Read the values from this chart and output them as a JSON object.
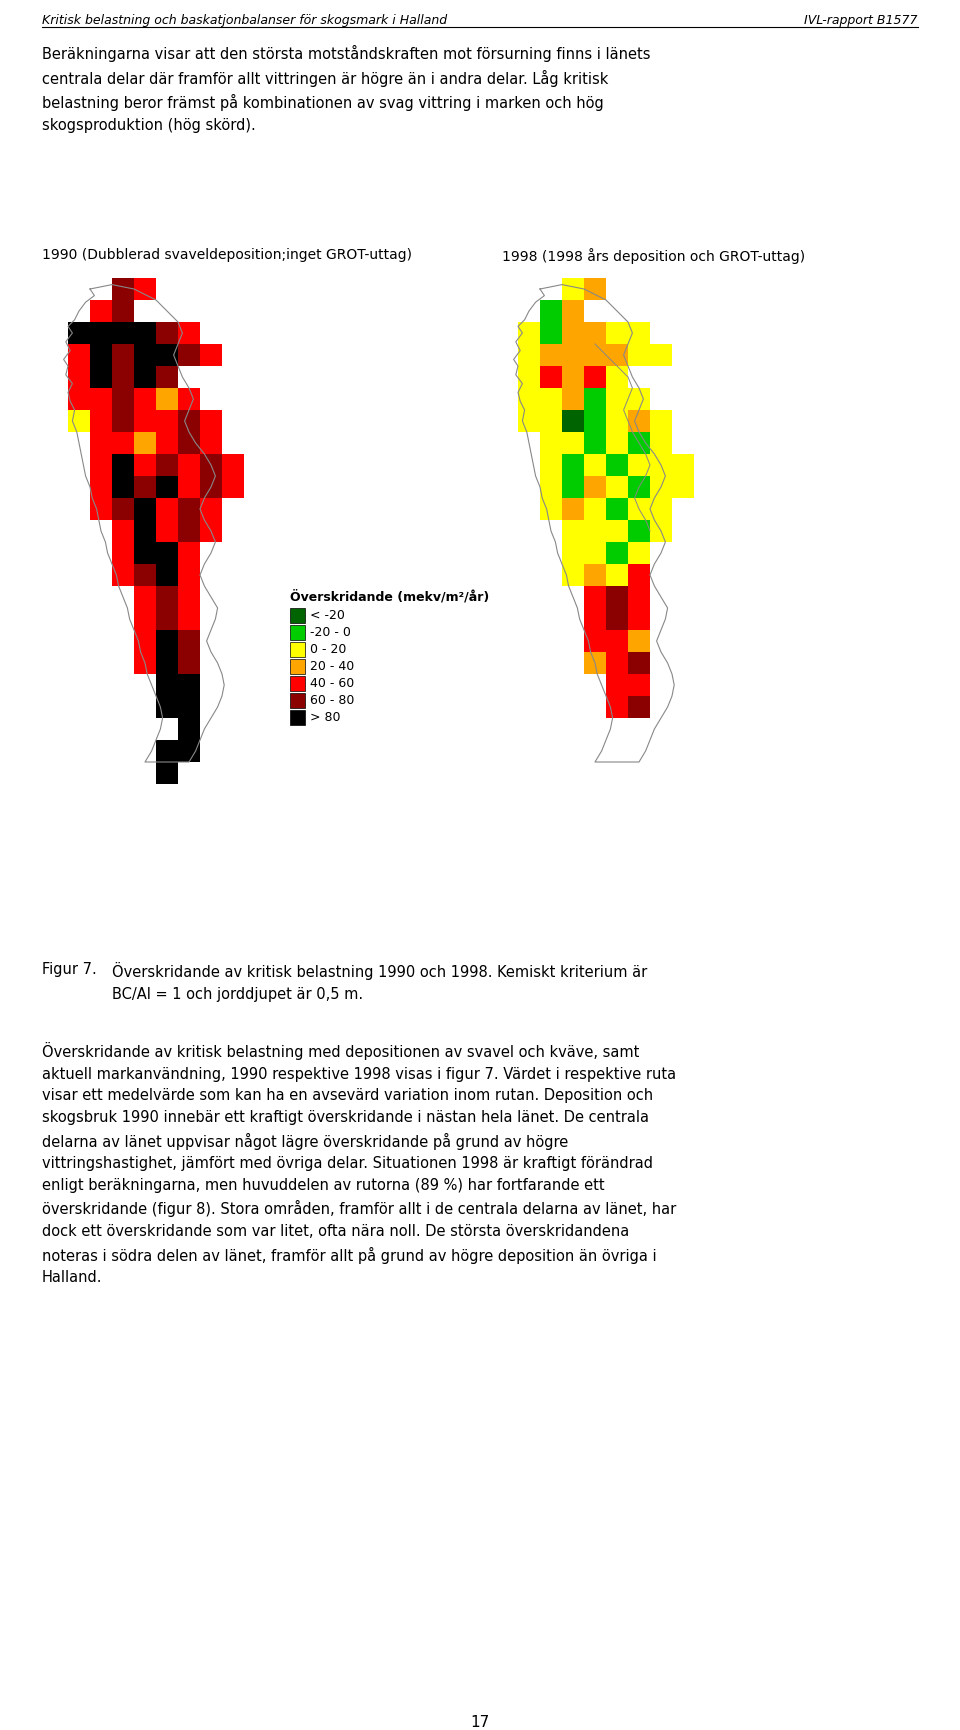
{
  "header_left": "Kritisk belastning och baskatjonbalanser för skogsmark i Halland",
  "header_right": "IVL-rapport B1577",
  "para1": "Beräkningarna visar att den största motståndskraften mot försurning finns i länets\ncentrala delar där framför allt vittringen är högre än i andra delar. Låg kritisk\nbelastning beror främst på kombinationen av svag vittring i marken och hög\nskogsproduktion (hög skörd).",
  "label_left": "1990 (Dubblerad svaveldeposition;inget GROT-uttag)",
  "label_right": "1998 (1998 års deposition och GROT-uttag)",
  "legend_title": "Överskridande (mekv/m²/år)",
  "legend_items": [
    {
      "label": "< -20",
      "color": "#006400"
    },
    {
      "label": "-20 - 0",
      "color": "#00CC00"
    },
    {
      "label": "0 - 20",
      "color": "#FFFF00"
    },
    {
      "label": "20 - 40",
      "color": "#FFA500"
    },
    {
      "label": "40 - 60",
      "color": "#FF0000"
    },
    {
      "label": "60 - 80",
      "color": "#8B0000"
    },
    {
      "label": "> 80",
      "color": "#000000"
    }
  ],
  "fig_caption_label": "Figur 7.",
  "fig_caption_text": "Överskridande av kritisk belastning 1990 och 1998. Kemiskt kriterium är\nBC/Al = 1 och jorddjupet är 0,5 m.",
  "body_text": "Överskridande av kritisk belastning med depositionen av svavel och kväve, samt\naktuell markanvändning, 1990 respektive 1998 visas i figur 7. Värdet i respektive ruta\nvisar ett medelvärde som kan ha en avsevärd variation inom rutan. Deposition och\nskogsbruk 1990 innebär ett kraftigt överskridande i nästan hela länet. De centrala\ndelarna av länet uppvisar något lägre överskridande på grund av högre\nvittringshastighet, jämfört med övriga delar. Situationen 1998 är kraftigt förändrad\nenligt beräkningarna, men huvuddelen av rutorna (89 %) har fortfarande ett\növerskridande (figur 8). Stora områden, framför allt i de centrala delarna av länet, har\ndock ett överskridande som var litet, ofta nära noll. De största överskridandena\nnoteras i södra delen av länet, framför allt på grund av högre deposition än övriga i\nHalland.",
  "page_number": "17",
  "bg_color": "#FFFFFF",
  "text_color": "#000000",
  "map1990_grid": [
    [
      null,
      null,
      "D",
      "R",
      null,
      null,
      null,
      null,
      null,
      null
    ],
    [
      null,
      "R",
      "D",
      null,
      null,
      null,
      null,
      null,
      null,
      null
    ],
    [
      "K",
      "K",
      "K",
      "K",
      "D",
      "R",
      null,
      null,
      null,
      null
    ],
    [
      "R",
      "K",
      "D",
      "K",
      "K",
      "D",
      "R",
      null,
      null,
      null
    ],
    [
      "R",
      "K",
      "D",
      "K",
      "D",
      null,
      null,
      null,
      null,
      null
    ],
    [
      "R",
      "R",
      "D",
      "R",
      "O",
      "R",
      null,
      null,
      null,
      null
    ],
    [
      "Y",
      "R",
      "D",
      "R",
      "R",
      "D",
      "R",
      null,
      null,
      null
    ],
    [
      null,
      "R",
      "R",
      "O",
      "R",
      "D",
      "R",
      null,
      null,
      null
    ],
    [
      null,
      "R",
      "K",
      "R",
      "D",
      "R",
      "D",
      "R",
      null,
      null
    ],
    [
      null,
      "R",
      "K",
      "D",
      "K",
      "R",
      "D",
      "R",
      null,
      null
    ],
    [
      null,
      "R",
      "D",
      "K",
      "R",
      "D",
      "R",
      null,
      null,
      null
    ],
    [
      null,
      null,
      "R",
      "K",
      "R",
      "D",
      "R",
      null,
      null,
      null
    ],
    [
      null,
      null,
      "R",
      "K",
      "K",
      "R",
      null,
      null,
      null,
      null
    ],
    [
      null,
      null,
      "R",
      "D",
      "K",
      "R",
      null,
      null,
      null,
      null
    ],
    [
      null,
      null,
      null,
      "R",
      "D",
      "R",
      null,
      null,
      null,
      null
    ],
    [
      null,
      null,
      null,
      "R",
      "D",
      "R",
      null,
      null,
      null,
      null
    ],
    [
      null,
      null,
      null,
      "R",
      "K",
      "D",
      null,
      null,
      null,
      null
    ],
    [
      null,
      null,
      null,
      "R",
      "K",
      "D",
      null,
      null,
      null,
      null
    ],
    [
      null,
      null,
      null,
      null,
      "K",
      "K",
      null,
      null,
      null,
      null
    ],
    [
      null,
      null,
      null,
      null,
      "K",
      "K",
      null,
      null,
      null,
      null
    ],
    [
      null,
      null,
      null,
      null,
      "W",
      "K",
      null,
      null,
      null,
      null
    ],
    [
      null,
      null,
      null,
      null,
      "K",
      "K",
      null,
      null,
      null,
      null
    ],
    [
      null,
      null,
      null,
      null,
      "K",
      null,
      null,
      null,
      null,
      null
    ]
  ],
  "map1998_grid": [
    [
      null,
      null,
      "Y",
      "O",
      null,
      null,
      null,
      null,
      null,
      null
    ],
    [
      null,
      "G",
      "O",
      null,
      null,
      null,
      null,
      null,
      null,
      null
    ],
    [
      "Y",
      "G",
      "O",
      "O",
      "Y",
      "Y",
      null,
      null,
      null,
      null
    ],
    [
      "Y",
      "O",
      "O",
      "O",
      "O",
      "Y",
      "Y",
      null,
      null,
      null
    ],
    [
      "Y",
      "R",
      "O",
      "R",
      "Y",
      null,
      null,
      null,
      null,
      null
    ],
    [
      "Y",
      "Y",
      "O",
      "G",
      "Y",
      "Y",
      null,
      null,
      null,
      null
    ],
    [
      "Y",
      "Y",
      "GD",
      "G",
      "Y",
      "O",
      "Y",
      null,
      null,
      null
    ],
    [
      null,
      "Y",
      "Y",
      "G",
      "Y",
      "G",
      "Y",
      null,
      null,
      null
    ],
    [
      null,
      "Y",
      "G",
      "Y",
      "G",
      "Y",
      "Y",
      "Y",
      null,
      null
    ],
    [
      null,
      "Y",
      "G",
      "O",
      "Y",
      "G",
      "Y",
      "Y",
      null,
      null
    ],
    [
      null,
      "Y",
      "O",
      "Y",
      "G",
      "Y",
      "Y",
      null,
      null,
      null
    ],
    [
      null,
      null,
      "Y",
      "Y",
      "Y",
      "G",
      "Y",
      null,
      null,
      null
    ],
    [
      null,
      null,
      "Y",
      "Y",
      "G",
      "Y",
      null,
      null,
      null,
      null
    ],
    [
      null,
      null,
      "Y",
      "O",
      "Y",
      "R",
      null,
      null,
      null,
      null
    ],
    [
      null,
      null,
      null,
      "R",
      "D",
      "R",
      null,
      null,
      null,
      null
    ],
    [
      null,
      null,
      null,
      "R",
      "D",
      "R",
      null,
      null,
      null,
      null
    ],
    [
      null,
      null,
      null,
      "R",
      "R",
      "O",
      null,
      null,
      null,
      null
    ],
    [
      null,
      null,
      null,
      "O",
      "R",
      "D",
      null,
      null,
      null,
      null
    ],
    [
      null,
      null,
      null,
      null,
      "R",
      "R",
      null,
      null,
      null,
      null
    ],
    [
      null,
      null,
      null,
      null,
      "R",
      "D",
      null,
      null,
      null,
      null
    ],
    [
      null,
      null,
      null,
      null,
      null,
      null,
      null,
      null,
      null,
      null
    ],
    [
      null,
      null,
      null,
      null,
      null,
      null,
      null,
      null,
      null,
      null
    ],
    [
      null,
      null,
      null,
      null,
      null,
      null,
      null,
      null,
      null,
      null
    ]
  ],
  "color_map": {
    "K": "#000000",
    "D": "#8B0000",
    "R": "#FF0000",
    "O": "#FFA500",
    "Y": "#FFFF00",
    "G": "#00CC00",
    "GD": "#006400",
    "W": "#FFFFFF"
  }
}
